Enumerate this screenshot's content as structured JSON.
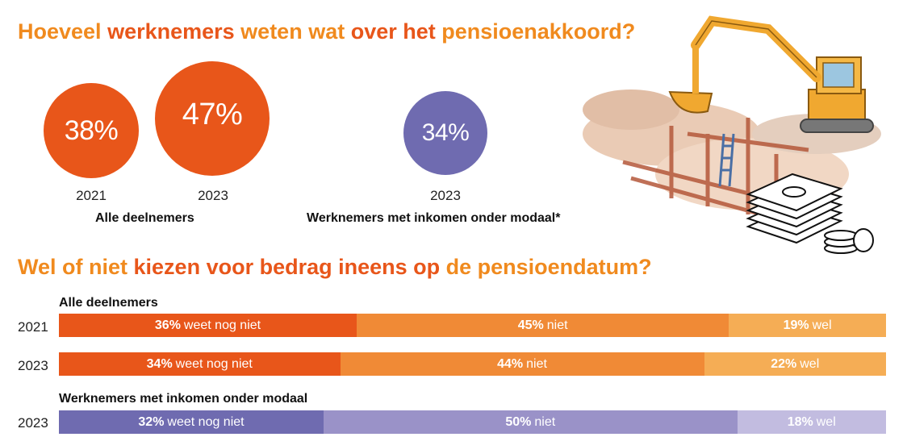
{
  "title1": {
    "parts": [
      "Hoeveel ",
      "werknemers ",
      "weten wat ",
      "over het ",
      "pensioenakkoord?"
    ]
  },
  "title2": {
    "parts": [
      "Wel of niet ",
      "kiezen ",
      "voor bedrag ineens op ",
      "de pensioendatum?"
    ]
  },
  "chart_data": [
    {
      "type": "bubble",
      "groups": [
        {
          "name": "Alle deelnemers",
          "points": [
            {
              "year": "2021",
              "value": 38,
              "label": "38%"
            },
            {
              "year": "2023",
              "value": 47,
              "label": "47%"
            }
          ]
        },
        {
          "name": "Werknemers met inkomen onder modaal*",
          "points": [
            {
              "year": "2023",
              "value": 34,
              "label": "34%"
            }
          ]
        }
      ],
      "colors": {
        "alle": "#e8561a",
        "modaal": "#6f6bb0"
      }
    },
    {
      "type": "bar",
      "stacked": true,
      "orientation": "horizontal",
      "categories_order": [
        "weet nog niet",
        "niet",
        "wel"
      ],
      "sections": [
        {
          "name": "Alle deelnemers",
          "rows": [
            {
              "year": "2021",
              "segments": [
                {
                  "value": 36,
                  "pct": "36%",
                  "label": "weet nog niet",
                  "color": "#e8561a"
                },
                {
                  "value": 45,
                  "pct": "45%",
                  "label": "niet",
                  "color": "#f08a36"
                },
                {
                  "value": 19,
                  "pct": "19%",
                  "label": "wel",
                  "color": "#f5ad55"
                }
              ]
            },
            {
              "year": "2023",
              "segments": [
                {
                  "value": 34,
                  "pct": "34%",
                  "label": "weet nog niet",
                  "color": "#e8561a"
                },
                {
                  "value": 44,
                  "pct": "44%",
                  "label": "niet",
                  "color": "#f08a36"
                },
                {
                  "value": 22,
                  "pct": "22%",
                  "label": "wel",
                  "color": "#f5ad55"
                }
              ]
            }
          ]
        },
        {
          "name": "Werknemers met inkomen onder modaal",
          "rows": [
            {
              "year": "2023",
              "segments": [
                {
                  "value": 32,
                  "pct": "32%",
                  "label": "weet nog niet",
                  "color": "#6f6bb0"
                },
                {
                  "value": 50,
                  "pct": "50%",
                  "label": "niet",
                  "color": "#9a92c8"
                },
                {
                  "value": 18,
                  "pct": "18%",
                  "label": "wel",
                  "color": "#c2bce0"
                }
              ]
            }
          ]
        }
      ]
    }
  ],
  "illustration": {
    "icon": "excavator-money-illustration"
  }
}
